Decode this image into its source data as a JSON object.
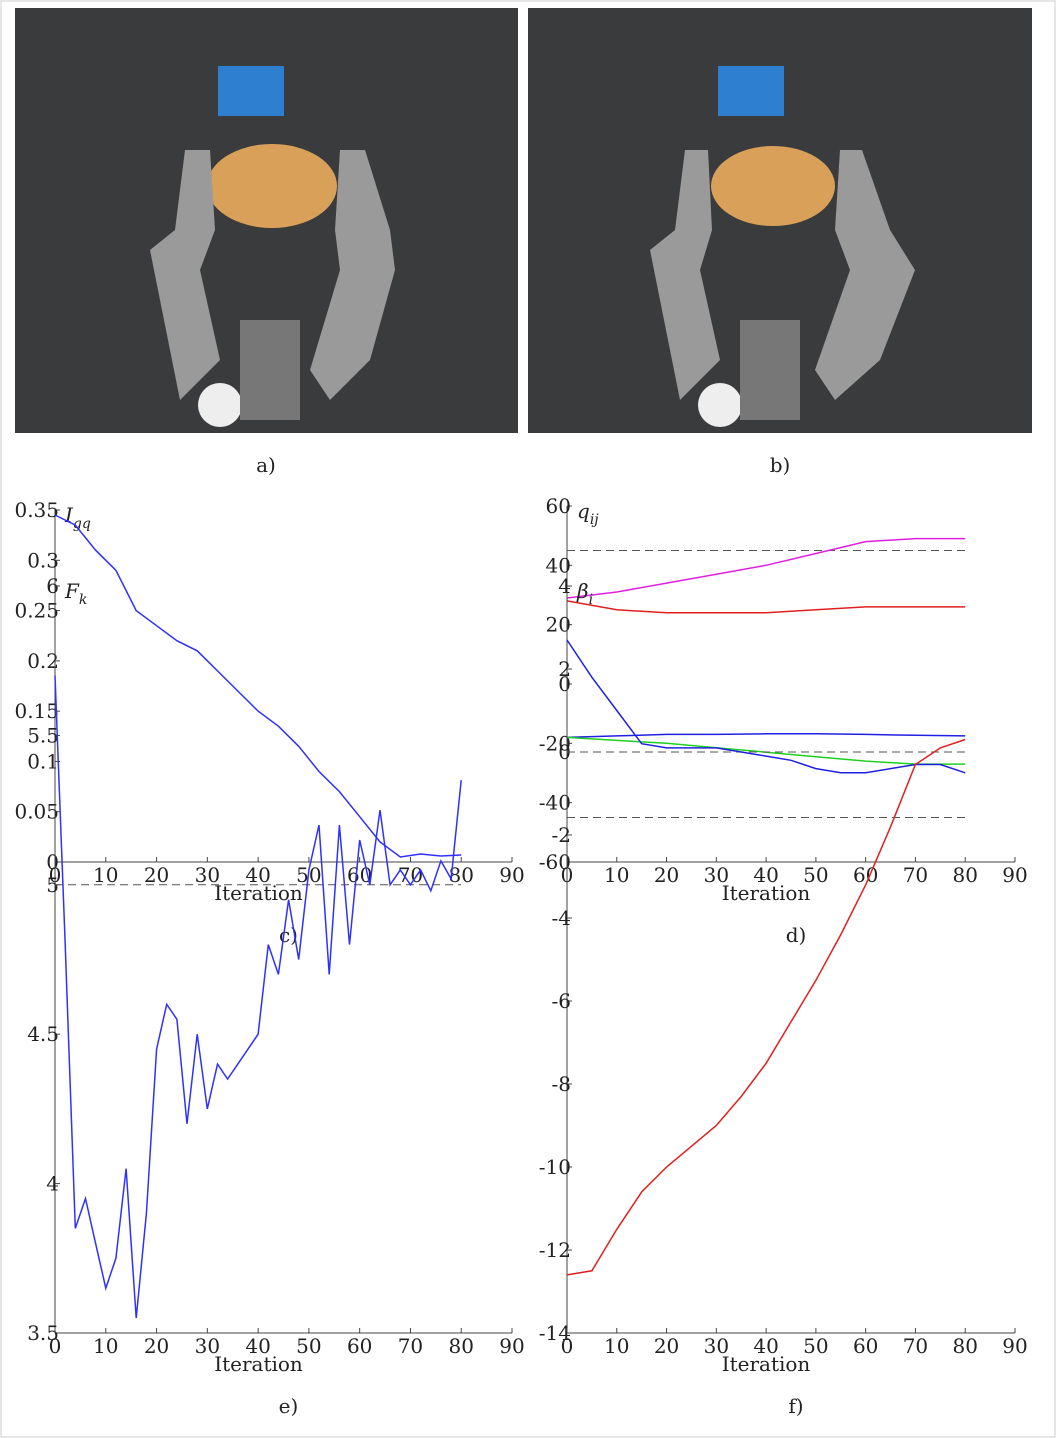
{
  "captions": [
    "a)",
    "b)"
  ],
  "chart_data": [
    {
      "type": "line",
      "caption": "c)",
      "ylabel": {
        "main": "I",
        "sub": "gq"
      },
      "xlabel": "Iteration",
      "x": [
        0,
        4,
        8,
        12,
        16,
        20,
        24,
        28,
        32,
        36,
        40,
        44,
        48,
        52,
        56,
        60,
        64,
        68,
        72,
        76,
        80
      ],
      "series": [
        {
          "color": "#3030ff",
          "values": [
            0.345,
            0.335,
            0.31,
            0.29,
            0.25,
            0.235,
            0.22,
            0.21,
            0.19,
            0.17,
            0.15,
            0.135,
            0.115,
            0.09,
            0.07,
            0.045,
            0.02,
            0.005,
            0.008,
            0.006,
            0.007
          ]
        }
      ],
      "xlim": [
        0,
        90
      ],
      "xticks": [
        0,
        10,
        20,
        30,
        40,
        50,
        60,
        70,
        80,
        90
      ],
      "ylim": [
        0,
        0.35
      ],
      "yticks": [
        0,
        0.05,
        0.1,
        0.15,
        0.2,
        0.25,
        0.3,
        0.35
      ]
    },
    {
      "type": "line",
      "caption": "d)",
      "ylabel": {
        "main": "q",
        "sub": "ij"
      },
      "xlabel": "Iteration",
      "x": [
        0,
        10,
        20,
        30,
        40,
        50,
        60,
        70,
        80
      ],
      "series": [
        {
          "color": "#e020e0",
          "values": [
            29,
            31,
            34,
            37,
            40,
            44,
            48,
            49,
            49
          ]
        },
        {
          "color": "#e02020",
          "values": [
            28,
            25,
            24,
            24,
            24,
            25,
            26,
            26,
            26
          ]
        },
        {
          "color": "#2020e0",
          "values": [
            -18,
            -17.5,
            -17,
            -17,
            -16.8,
            -16.8,
            -17,
            -17.3,
            -17.5
          ]
        },
        {
          "color": "#20d020",
          "values": [
            -18,
            -19,
            -20,
            -21.5,
            -23,
            -24.5,
            -26,
            -27,
            -27
          ]
        }
      ],
      "hlines": [
        45,
        -45
      ],
      "xlim": [
        0,
        90
      ],
      "xticks": [
        0,
        10,
        20,
        30,
        40,
        50,
        60,
        70,
        80,
        90
      ],
      "ylim": [
        -60,
        60
      ],
      "yticks": [
        -60,
        -40,
        -20,
        0,
        20,
        40,
        60
      ]
    },
    {
      "type": "line",
      "caption": "e)",
      "ylabel": {
        "main": "F",
        "sub": "k"
      },
      "xlabel": "Iteration",
      "x": [
        0,
        2,
        4,
        6,
        8,
        10,
        12,
        14,
        16,
        18,
        20,
        22,
        24,
        26,
        28,
        30,
        32,
        34,
        36,
        38,
        40,
        42,
        44,
        46,
        48,
        50,
        52,
        54,
        56,
        58,
        60,
        62,
        64,
        66,
        68,
        70,
        72,
        74,
        76,
        78,
        80
      ],
      "series": [
        {
          "color": "#3030ff",
          "values": [
            5.7,
            4.8,
            3.85,
            3.95,
            3.8,
            3.65,
            3.75,
            4.05,
            3.55,
            3.9,
            4.45,
            4.6,
            4.55,
            4.2,
            4.5,
            4.25,
            4.4,
            4.35,
            4.4,
            4.45,
            4.5,
            4.8,
            4.7,
            4.95,
            4.75,
            5.05,
            5.2,
            4.7,
            5.2,
            4.8,
            5.15,
            5.0,
            5.25,
            5.0,
            5.05,
            5.0,
            5.05,
            4.98,
            5.08,
            5.02,
            5.35
          ]
        }
      ],
      "hlines": [
        5
      ],
      "xlim": [
        0,
        90
      ],
      "xticks": [
        0,
        10,
        20,
        30,
        40,
        50,
        60,
        70,
        80,
        90
      ],
      "ylim": [
        3.5,
        6
      ],
      "yticks": [
        3.5,
        4,
        4.5,
        5,
        5.5,
        6
      ]
    },
    {
      "type": "line",
      "caption": "f)",
      "ylabel": {
        "main": "β",
        "sub": "i"
      },
      "xlabel": "Iteration",
      "x": [
        0,
        5,
        10,
        15,
        20,
        25,
        30,
        35,
        40,
        45,
        50,
        55,
        60,
        65,
        70,
        75,
        80
      ],
      "series": [
        {
          "color": "#2020e0",
          "values": [
            2.7,
            1.8,
            1.0,
            0.2,
            0.1,
            0.1,
            0.1,
            0,
            -0.1,
            -0.2,
            -0.4,
            -0.5,
            -0.5,
            -0.4,
            -0.3,
            -0.3,
            -0.5
          ]
        },
        {
          "color": "#e02020",
          "values": [
            -12.6,
            -12.5,
            -11.5,
            -10.6,
            -10,
            -9.5,
            -9,
            -8.3,
            -7.5,
            -6.5,
            -5.5,
            -4.4,
            -3.2,
            -1.8,
            -0.3,
            0.1,
            0.3
          ]
        }
      ],
      "hlines": [
        0
      ],
      "xlim": [
        0,
        90
      ],
      "xticks": [
        0,
        10,
        20,
        30,
        40,
        50,
        60,
        70,
        80,
        90
      ],
      "ylim": [
        -14,
        4
      ],
      "yticks": [
        -14,
        -12,
        -10,
        -8,
        -6,
        -4,
        -2,
        0,
        2,
        4
      ]
    }
  ]
}
